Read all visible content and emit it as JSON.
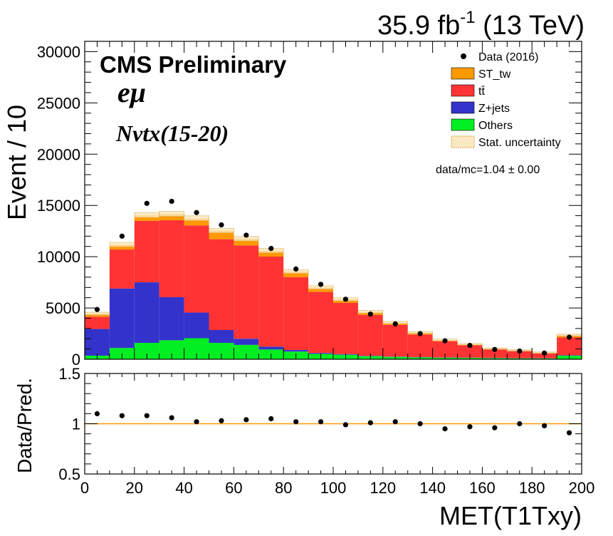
{
  "header": {
    "lumi": "35.9 fb",
    "lumi_sup": "-1",
    "energy": " (13 TeV)"
  },
  "labels": {
    "cms": "CMS Preliminary",
    "channel": "eμ",
    "selection": "Nvtx(15-20)",
    "ratio_text": "data/mc=1.04 ± 0.00"
  },
  "chart_data": [
    {
      "type": "bar",
      "stacked": true,
      "xlabel": "MET(T1Txy)",
      "ylabel": "Event / 10",
      "xlim": [
        0,
        200
      ],
      "ylim": [
        0,
        31000
      ],
      "xticks": [
        0,
        20,
        40,
        60,
        80,
        100,
        120,
        140,
        160,
        180,
        200
      ],
      "yticks": [
        0,
        5000,
        10000,
        15000,
        20000,
        25000,
        30000
      ],
      "bin_edges": [
        0,
        10,
        20,
        30,
        40,
        50,
        60,
        70,
        80,
        90,
        100,
        110,
        120,
        130,
        140,
        150,
        160,
        170,
        180,
        190,
        200
      ],
      "series": [
        {
          "name": "Others",
          "color": "#00ee22",
          "values": [
            350,
            1100,
            1600,
            1850,
            2050,
            1600,
            1400,
            950,
            750,
            520,
            440,
            300,
            230,
            190,
            160,
            140,
            120,
            100,
            90,
            350
          ]
        },
        {
          "name": "Z+jets",
          "color": "#3333cc",
          "values": [
            2600,
            5800,
            5900,
            4200,
            2500,
            1250,
            600,
            280,
            150,
            90,
            60,
            40,
            30,
            20,
            15,
            12,
            10,
            8,
            6,
            40
          ]
        },
        {
          "name": "tt̄",
          "color": "#ff3333",
          "values": [
            1200,
            3800,
            6000,
            7500,
            8500,
            8850,
            9100,
            8780,
            7100,
            5950,
            5000,
            3980,
            3100,
            2200,
            1580,
            1200,
            830,
            700,
            520,
            1750
          ]
        },
        {
          "name": "ST_tw",
          "color": "#ff9900",
          "values": [
            300,
            480,
            550,
            620,
            700,
            850,
            650,
            580,
            550,
            440,
            340,
            300,
            210,
            180,
            120,
            110,
            80,
            60,
            40,
            210
          ]
        }
      ],
      "data_series": {
        "name": "Data (2016)",
        "x": [
          5,
          15,
          25,
          35,
          45,
          55,
          65,
          75,
          85,
          95,
          105,
          115,
          125,
          135,
          145,
          155,
          165,
          175,
          185,
          195
        ],
        "values": [
          4850,
          12000,
          15200,
          15400,
          14300,
          13100,
          12100,
          10800,
          8800,
          7300,
          5850,
          4400,
          3450,
          2500,
          1800,
          1350,
          950,
          800,
          600,
          2150
        ]
      },
      "legend": {
        "position": "top-right",
        "entries": [
          "Data (2016)",
          "ST_tw",
          "tt̄",
          "Z+jets",
          "Others",
          "Stat. uncertainty"
        ]
      }
    },
    {
      "type": "scatter",
      "xlabel": "MET(T1Txy)",
      "ylabel": "Data/Pred.",
      "xlim": [
        0,
        200
      ],
      "ylim": [
        0.5,
        1.5
      ],
      "yticks": [
        0.5,
        1,
        1.5
      ],
      "y_tick_labels": [
        "0.5",
        "1",
        "1.5"
      ],
      "x": [
        5,
        15,
        25,
        35,
        45,
        55,
        65,
        75,
        85,
        95,
        105,
        115,
        125,
        135,
        145,
        155,
        165,
        175,
        185,
        195
      ],
      "values": [
        1.1,
        1.08,
        1.08,
        1.06,
        1.02,
        1.03,
        1.04,
        1.05,
        1.02,
        1.02,
        0.99,
        1.01,
        1.02,
        1.0,
        0.95,
        0.97,
        0.96,
        1.0,
        0.98,
        0.91
      ],
      "reference_line": 1
    }
  ],
  "colors": {
    "stat_unc": "#d4a84b",
    "reference_line": "#ff9900",
    "frame": "#000000"
  }
}
